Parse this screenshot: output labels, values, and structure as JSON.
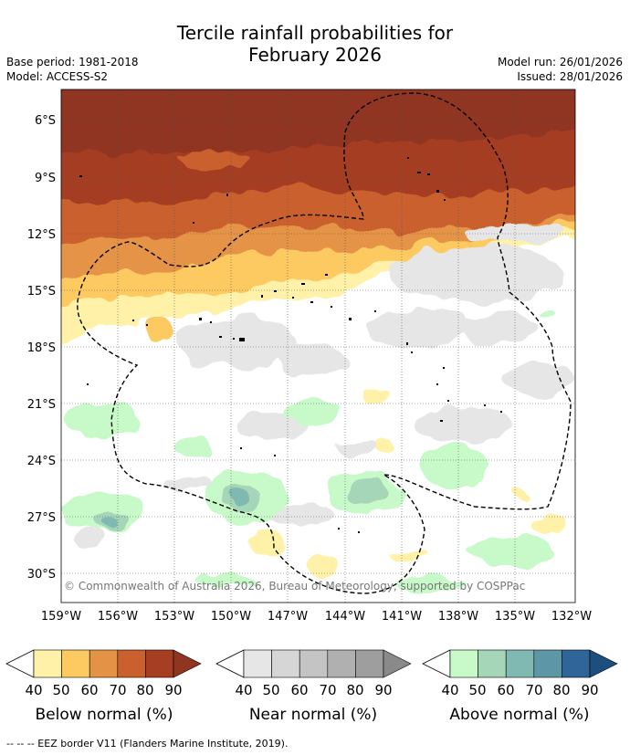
{
  "title_line1": "Tercile rainfall probabilities for",
  "title_line2": "February 2026",
  "meta": {
    "base_period": "Base period: 1981-2018",
    "model": "Model: ACCESS-S2",
    "model_run": "Model run: 26/01/2026",
    "issued": "Issued: 28/01/2026"
  },
  "map": {
    "lat_labels": [
      "6°S",
      "9°S",
      "12°S",
      "15°S",
      "18°S",
      "21°S",
      "24°S",
      "27°S",
      "30°S"
    ],
    "lon_labels": [
      "159°W",
      "156°W",
      "153°W",
      "150°W",
      "147°W",
      "144°W",
      "141°W",
      "138°W",
      "135°W",
      "132°W"
    ],
    "copyright": "© Commonwealth of Australia 2026, Bureau of Meteorology, supported by COSPPac"
  },
  "colors": {
    "below": [
      "#fff2a8",
      "#fdca62",
      "#e49346",
      "#c9602d",
      "#a53e22",
      "#8f3520"
    ],
    "near": [
      "#e6e6e6",
      "#d6d6d6",
      "#c4c4c4",
      "#b0b0b0",
      "#9e9e9e",
      "#8a8a8a"
    ],
    "above": [
      "#c8fac9",
      "#a6d6b8",
      "#80b8b2",
      "#5d97a6",
      "#2f6599",
      "#1d4f7e"
    ]
  },
  "legends": [
    {
      "name": "below",
      "label": "Below normal (%)",
      "ticks": [
        "40",
        "50",
        "60",
        "70",
        "80",
        "90"
      ]
    },
    {
      "name": "near",
      "label": "Near normal (%)",
      "ticks": [
        "40",
        "50",
        "60",
        "70",
        "80",
        "90"
      ]
    },
    {
      "name": "above",
      "label": "Above normal (%)",
      "ticks": [
        "40",
        "50",
        "60",
        "70",
        "80",
        "90"
      ]
    }
  ],
  "footer": "-- -- -- EEZ border V11 (Flanders Marine Institute, 2019)."
}
